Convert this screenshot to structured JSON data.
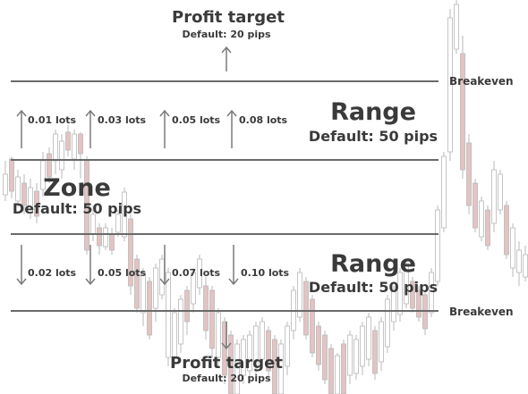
{
  "profit_target_top": {
    "title": "Profit target",
    "subtitle": "Default: 20 pips"
  },
  "profit_target_bottom": {
    "title": "Profit target",
    "subtitle": "Default: 20 pips"
  },
  "breakeven_top": "Breakeven",
  "breakeven_bottom": "Breakeven",
  "range_top": {
    "title": "Range",
    "subtitle": "Default: 50 pips"
  },
  "range_bottom": {
    "title": "Range",
    "subtitle": "Default: 50 pips"
  },
  "zone": {
    "title": "Zone",
    "subtitle": "Default: 50 pips"
  },
  "buy_lots": [
    "0.01 lots",
    "0.03 lots",
    "0.05 lots",
    "0.08 lots"
  ],
  "sell_lots": [
    "0.02 lots",
    "0.05 lots",
    "0.07 lots",
    "0.10 lots"
  ],
  "colors": {
    "line": "#6a6a6a",
    "arrow": "#7a7a7a",
    "candle_up": "#ffffff",
    "candle_down": "#e3c3c3",
    "wick": "#b8b8b8",
    "text": "#3a3a3a"
  }
}
